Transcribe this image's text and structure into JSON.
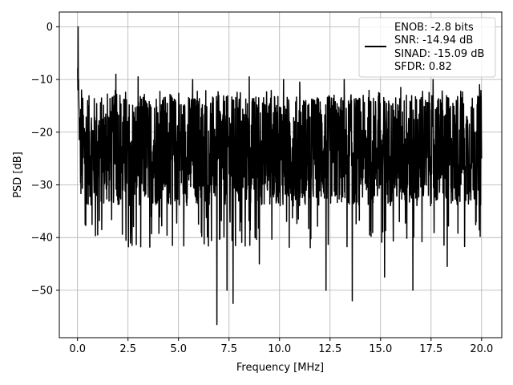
{
  "chart_data": {
    "type": "line",
    "xlabel": "Frequency [MHz]",
    "ylabel": "PSD [dB]",
    "xlim": [
      -0.9,
      21.0
    ],
    "ylim": [
      -59.0,
      2.8
    ],
    "xticks": [
      0.0,
      2.5,
      5.0,
      7.5,
      10.0,
      12.5,
      15.0,
      17.5,
      20.0
    ],
    "xtick_labels": [
      "0.0",
      "2.5",
      "5.0",
      "7.5",
      "10.0",
      "12.5",
      "15.0",
      "17.5",
      "20.0"
    ],
    "yticks": [
      0,
      -10,
      -20,
      -30,
      -40,
      -50
    ],
    "ytick_labels": [
      "0",
      "−10",
      "−20",
      "−30",
      "−40",
      "−50"
    ],
    "grid": true,
    "legend_position": "upper-right",
    "series": [
      {
        "color": "#000000",
        "description": "Noise-like PSD trace: starts near 0 dB at 0 MHz, falls to about -20 dB by 0.1 MHz, then fluctuates mostly between -30 and -13 dB up to 20 MHz, with deep dips and sharp peaks.",
        "points": [
          [
            0.0,
            -8
          ],
          [
            0.03,
            0
          ],
          [
            0.06,
            -13
          ],
          [
            0.1,
            -21
          ],
          [
            0.2,
            -12
          ],
          [
            0.4,
            -32
          ],
          [
            0.5,
            -14
          ],
          [
            1.0,
            -39.5
          ],
          [
            1.9,
            -9
          ],
          [
            2.1,
            -13
          ],
          [
            2.7,
            -41.5
          ],
          [
            3.0,
            -9.5
          ],
          [
            4.7,
            -41.5
          ],
          [
            5.7,
            -10
          ],
          [
            6.9,
            -56.5
          ],
          [
            7.4,
            -50
          ],
          [
            7.7,
            -52.5
          ],
          [
            8.5,
            -9.5
          ],
          [
            9.0,
            -45
          ],
          [
            10.2,
            -10
          ],
          [
            11.0,
            -10.5
          ],
          [
            12.3,
            -50
          ],
          [
            13.2,
            -10
          ],
          [
            13.6,
            -52
          ],
          [
            15.2,
            -47.5
          ],
          [
            16.0,
            -11.5
          ],
          [
            16.6,
            -50
          ],
          [
            17.6,
            -10
          ],
          [
            18.3,
            -45.5
          ],
          [
            19.9,
            -11
          ],
          [
            20.0,
            -25
          ]
        ],
        "baseline_db": -23,
        "fluctuation_db": [
          -34,
          -13
        ]
      }
    ],
    "legend": {
      "lines": [
        "ENOB: -2.8 bits",
        "SNR: -14.94 dB",
        "SINAD: -15.09 dB",
        "SFDR: 0.82"
      ]
    }
  }
}
